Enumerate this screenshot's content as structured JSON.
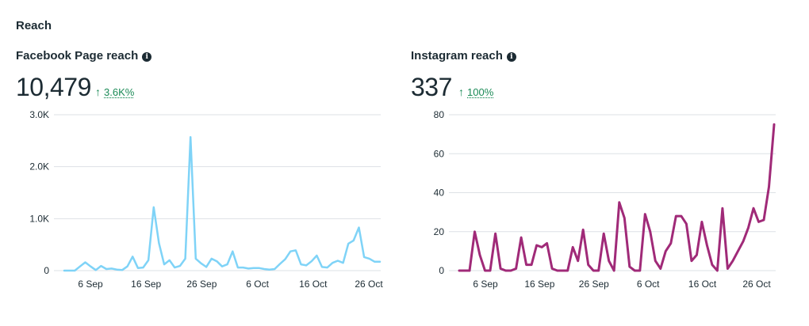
{
  "section_title": "Reach",
  "facebook": {
    "title": "Facebook Page reach",
    "total": "10,479",
    "change": "3.6K%",
    "change_color": "#1a8a56",
    "line_color": "#7fd3f7",
    "chart_data": {
      "type": "line",
      "ylim": [
        0,
        3000
      ],
      "yticks": [
        "0",
        "1.0K",
        "2.0K",
        "3.0K"
      ],
      "xticks": [
        "6 Sep",
        "16 Sep",
        "26 Sep",
        "6 Oct",
        "16 Oct",
        "26 Oct"
      ],
      "values": [
        0,
        0,
        0,
        80,
        160,
        80,
        10,
        90,
        30,
        40,
        20,
        10,
        80,
        270,
        50,
        60,
        200,
        1220,
        530,
        120,
        200,
        60,
        90,
        230,
        2570,
        230,
        140,
        70,
        230,
        180,
        80,
        120,
        370,
        60,
        60,
        40,
        50,
        50,
        30,
        20,
        30,
        130,
        220,
        370,
        390,
        120,
        100,
        180,
        290,
        70,
        60,
        150,
        190,
        150,
        520,
        580,
        830,
        260,
        230,
        170,
        170
      ]
    }
  },
  "instagram": {
    "title": "Instagram reach",
    "total": "337",
    "change": "100%",
    "change_color": "#1a8a56",
    "line_color": "#a02a78",
    "chart_data": {
      "type": "line",
      "ylim": [
        0,
        80
      ],
      "yticks": [
        "0",
        "20",
        "40",
        "60",
        "80"
      ],
      "xticks": [
        "6 Sep",
        "16 Sep",
        "26 Sep",
        "6 Oct",
        "16 Oct",
        "26 Oct"
      ],
      "values": [
        0,
        0,
        0,
        20,
        8,
        0,
        0,
        19,
        1,
        0,
        0,
        1,
        17,
        3,
        3,
        13,
        12,
        14,
        1,
        0,
        0,
        0,
        12,
        5,
        21,
        3,
        0,
        0,
        19,
        5,
        0,
        35,
        27,
        2,
        0,
        0,
        29,
        20,
        5,
        1,
        10,
        14,
        28,
        28,
        24,
        5,
        8,
        25,
        13,
        3,
        0,
        32,
        1,
        5,
        10,
        15,
        22,
        32,
        25,
        26,
        43,
        75
      ]
    }
  }
}
